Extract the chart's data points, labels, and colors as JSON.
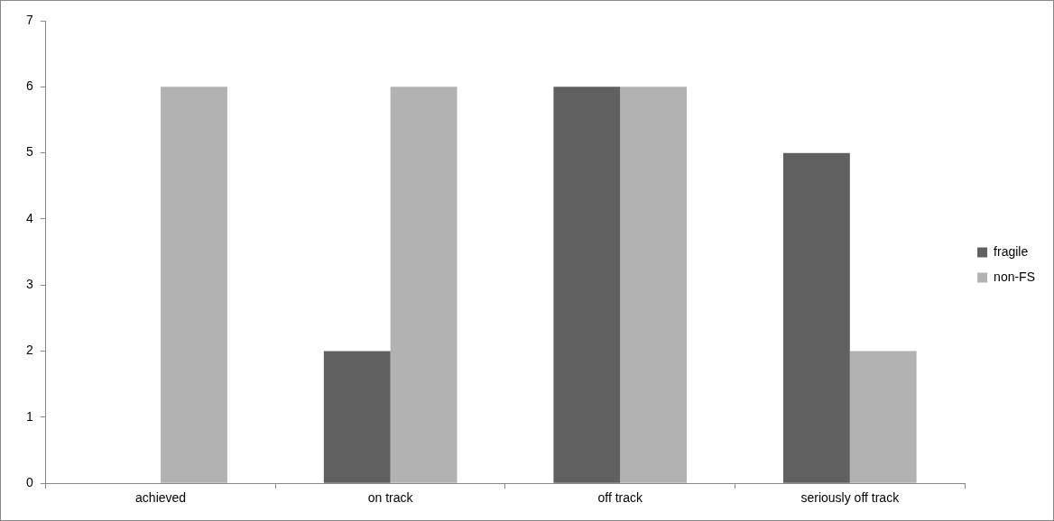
{
  "chart_data": {
    "type": "bar",
    "categories": [
      "achieved",
      "on track",
      "off track",
      "seriously off track"
    ],
    "series": [
      {
        "name": "fragile",
        "color": "#606060",
        "values": [
          0,
          2,
          6,
          5
        ]
      },
      {
        "name": "non-FS",
        "color": "#b2b2b2",
        "values": [
          6,
          6,
          6,
          2
        ]
      }
    ],
    "ylim": [
      0,
      7
    ],
    "yticks": [
      0,
      1,
      2,
      3,
      4,
      5,
      6,
      7
    ],
    "grid": false,
    "legend": "right"
  }
}
